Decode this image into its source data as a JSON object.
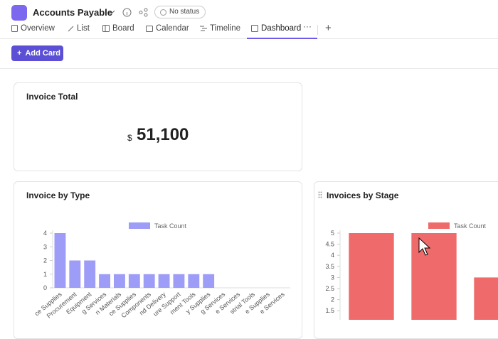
{
  "header": {
    "title": "Accounts Payable",
    "status": "No status"
  },
  "tabs": [
    "Overview",
    "List",
    "Board",
    "Calendar",
    "Timeline",
    "Dashboard"
  ],
  "add_card": "Add Card",
  "total_card": {
    "title": "Invoice Total",
    "currency": "$",
    "value": "51,100"
  },
  "chart_data": [
    {
      "type": "bar",
      "title": "Invoice by Type",
      "categories": [
        "ce Supplies",
        "Procurement",
        "Equipment",
        "g Services",
        "n Materials",
        "ce Supplies",
        "Components",
        "nd Delivery",
        "ure Support",
        "ment Tools",
        "y Supplies",
        "g Services",
        "e Services",
        "strial Tools",
        "e Supplies",
        "e Services"
      ],
      "series": [
        {
          "name": "Task Count",
          "color": "#9d9cf7",
          "values": [
            4,
            2,
            2,
            1,
            1,
            1,
            1,
            1,
            1,
            1,
            1,
            0,
            0,
            0,
            0,
            0
          ]
        }
      ],
      "ylim": [
        0,
        4
      ],
      "yticks": [
        0,
        1,
        2,
        3,
        4
      ],
      "grid": false
    },
    {
      "type": "bar",
      "title": "Invoices by Stage",
      "categories": [
        null,
        null,
        null
      ],
      "series": [
        {
          "name": "Task Count",
          "color": "#ef6b6b",
          "values": [
            5,
            5,
            3
          ]
        }
      ],
      "ylim": [
        0,
        5
      ],
      "yticks": [
        1.5,
        2,
        2.5,
        3,
        3.5,
        4,
        4.5,
        5
      ],
      "grid": false
    }
  ]
}
